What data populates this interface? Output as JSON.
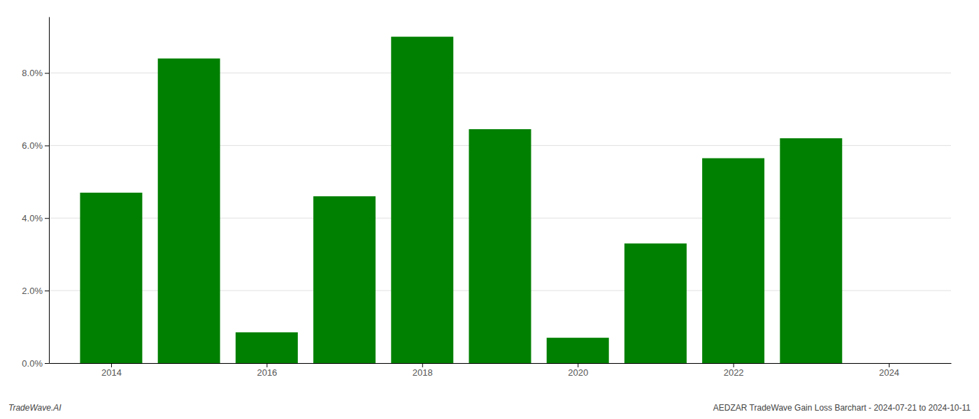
{
  "chart_data": {
    "type": "bar",
    "x": [
      2014,
      2015,
      2016,
      2017,
      2018,
      2019,
      2020,
      2021,
      2022,
      2023
    ],
    "values": [
      0.047,
      0.084,
      0.0085,
      0.046,
      0.09,
      0.0645,
      0.007,
      0.033,
      0.0565,
      0.062
    ],
    "color": "#008000",
    "ylim": [
      0,
      0.0955
    ],
    "yticks": [
      {
        "value": 0.0,
        "label": "0.0%"
      },
      {
        "value": 0.02,
        "label": "2.0%"
      },
      {
        "value": 0.04,
        "label": "4.0%"
      },
      {
        "value": 0.06,
        "label": "6.0%"
      },
      {
        "value": 0.08,
        "label": "8.0%"
      }
    ],
    "xlim": [
      2013.2,
      2024.8
    ],
    "xticks": [
      2014,
      2016,
      2018,
      2020,
      2022,
      2024
    ],
    "grid": true,
    "annotations": [
      "TradeWave.AI",
      "AEDZAR TradeWave Gain Loss Barchart - 2024-07-21 to 2024-10-11"
    ]
  }
}
